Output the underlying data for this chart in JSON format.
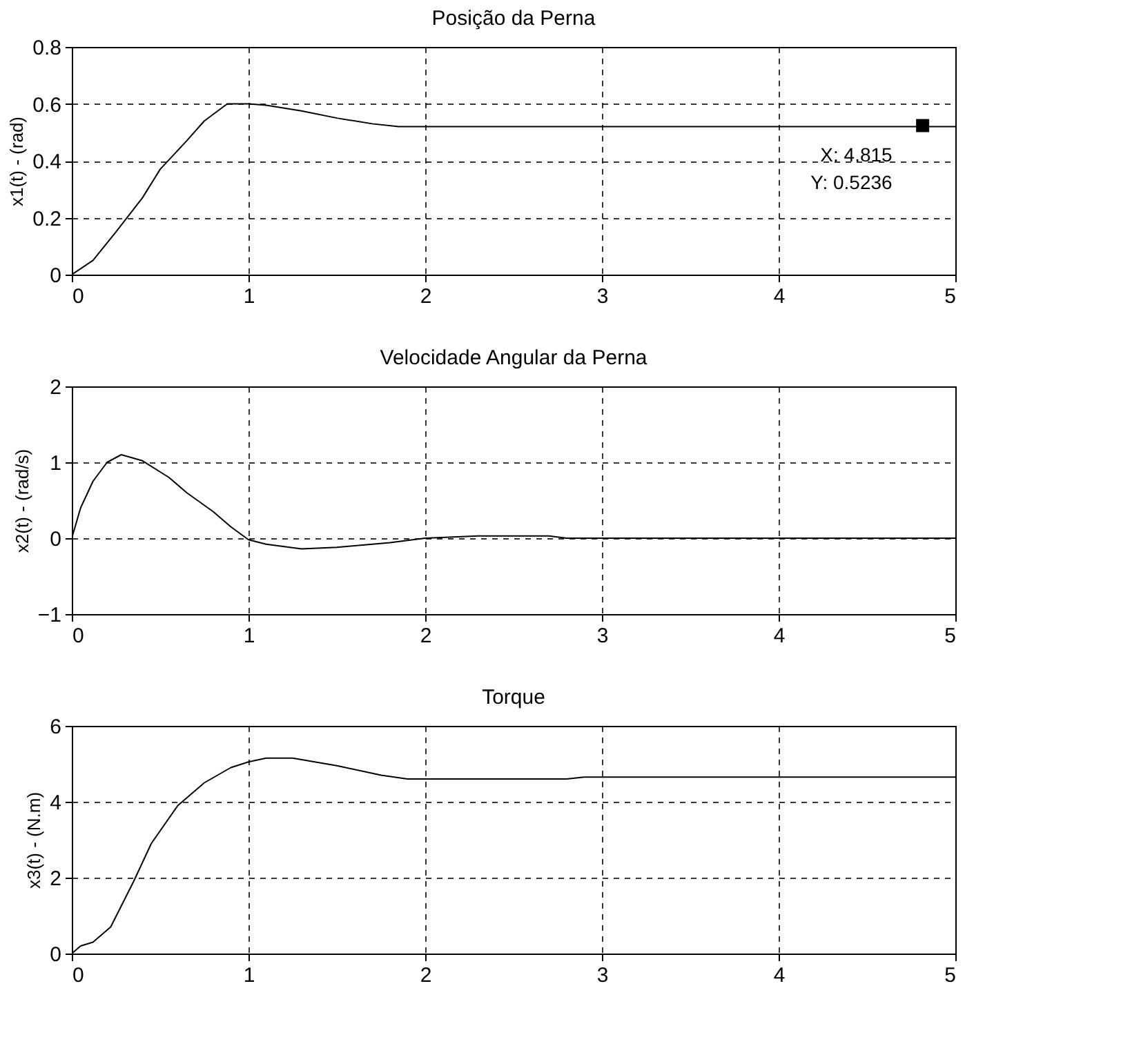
{
  "chart_data": [
    {
      "type": "line",
      "title": "Posição da Perna",
      "ylabel": "x1(t) - (rad)",
      "x": [
        0,
        0.12,
        0.25,
        0.4,
        0.5,
        0.65,
        0.75,
        0.88,
        1.0,
        1.1,
        1.3,
        1.5,
        1.7,
        1.85,
        2.0,
        2.5,
        2.6,
        4.815,
        5
      ],
      "series": [
        {
          "color": "#000000",
          "values": [
            0,
            0.05,
            0.15,
            0.27,
            0.37,
            0.47,
            0.54,
            0.6,
            0.6,
            0.595,
            0.575,
            0.55,
            0.53,
            0.52,
            0.52,
            0.52,
            0.52,
            0.52,
            0.52
          ]
        }
      ],
      "xlim": [
        0,
        5
      ],
      "xticks": [
        0,
        1,
        2,
        3,
        4,
        5
      ],
      "ylim": [
        0,
        0.8
      ],
      "yticks": [
        0,
        0.2,
        0.4,
        0.6,
        0.8
      ],
      "grid": true,
      "annotations": [
        {
          "text": "X: 4.815\nY: 0.5236",
          "x": 4.815,
          "y": 0.5236
        }
      ]
    },
    {
      "type": "line",
      "title": "Velocidade Angular da Perna",
      "ylabel": "x2(t) - (rad/s)",
      "x": [
        0,
        0.05,
        0.12,
        0.2,
        0.28,
        0.4,
        0.55,
        0.65,
        0.8,
        0.9,
        1.0,
        1.1,
        1.3,
        1.5,
        1.8,
        2.0,
        2.3,
        2.7,
        2.8,
        5
      ],
      "series": [
        {
          "color": "#000000",
          "values": [
            0,
            0.4,
            0.75,
            1.0,
            1.1,
            1.02,
            0.8,
            0.6,
            0.35,
            0.15,
            -0.02,
            -0.08,
            -0.14,
            -0.12,
            -0.06,
            0,
            0.03,
            0.03,
            0,
            0
          ]
        }
      ],
      "xlim": [
        0,
        5
      ],
      "xticks": [
        0,
        1,
        2,
        3,
        4,
        5
      ],
      "ylim": [
        -1,
        2
      ],
      "yticks": [
        -1,
        0,
        1,
        2
      ],
      "grid": true
    },
    {
      "type": "line",
      "title": "Torque",
      "ylabel": "x3(t) - (N.m)",
      "x": [
        0,
        0.05,
        0.12,
        0.22,
        0.35,
        0.45,
        0.6,
        0.75,
        0.9,
        1.0,
        1.1,
        1.25,
        1.5,
        1.75,
        1.9,
        2.8,
        2.9,
        5
      ],
      "series": [
        {
          "color": "#000000",
          "values": [
            0,
            0.2,
            0.3,
            0.7,
            1.9,
            2.9,
            3.9,
            4.5,
            4.9,
            5.05,
            5.15,
            5.15,
            4.95,
            4.7,
            4.6,
            4.6,
            4.65,
            4.65
          ]
        }
      ],
      "xlim": [
        0,
        5
      ],
      "xticks": [
        0,
        1,
        2,
        3,
        4,
        5
      ],
      "ylim": [
        0,
        6
      ],
      "yticks": [
        0,
        2,
        4,
        6
      ],
      "grid": true
    }
  ]
}
